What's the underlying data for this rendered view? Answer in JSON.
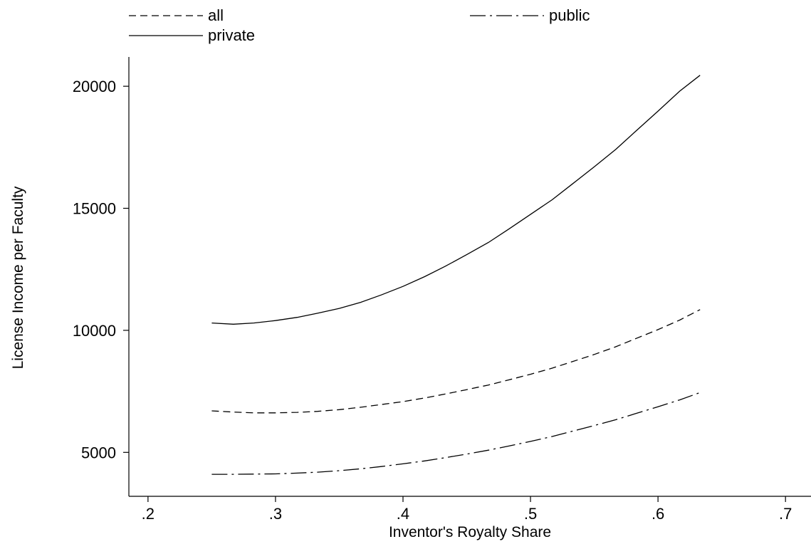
{
  "chart_data": {
    "type": "line",
    "title": "",
    "xlabel": "Inventor's Royalty Share",
    "ylabel": "License Income per Faculty",
    "xlim": [
      0.185,
      0.72
    ],
    "ylim": [
      3200,
      21200
    ],
    "xticks": [
      0.2,
      0.3,
      0.4,
      0.5,
      0.6,
      0.7
    ],
    "xtick_labels": [
      ".2",
      ".3",
      ".4",
      ".5",
      ".6",
      ".7"
    ],
    "yticks": [
      5000,
      10000,
      15000,
      20000
    ],
    "ytick_labels": [
      "5000",
      "10000",
      "15000",
      "20000"
    ],
    "grid": false,
    "legend_position": "top",
    "x": [
      0.25,
      0.267,
      0.283,
      0.3,
      0.317,
      0.333,
      0.35,
      0.367,
      0.383,
      0.4,
      0.417,
      0.433,
      0.45,
      0.467,
      0.483,
      0.5,
      0.517,
      0.533,
      0.55,
      0.567,
      0.583,
      0.6,
      0.617,
      0.633
    ],
    "series": [
      {
        "name": "all",
        "style": "dashed",
        "color": "#000000",
        "values": [
          6700,
          6650,
          6620,
          6620,
          6640,
          6680,
          6750,
          6850,
          6960,
          7080,
          7230,
          7390,
          7570,
          7760,
          7970,
          8200,
          8450,
          8720,
          9010,
          9330,
          9670,
          10030,
          10420,
          10850
        ]
      },
      {
        "name": "public",
        "style": "dash-dot",
        "color": "#000000",
        "values": [
          4100,
          4100,
          4110,
          4120,
          4150,
          4190,
          4250,
          4330,
          4420,
          4530,
          4650,
          4780,
          4930,
          5090,
          5260,
          5450,
          5650,
          5870,
          6100,
          6340,
          6600,
          6870,
          7150,
          7450
        ]
      },
      {
        "name": "private",
        "style": "solid",
        "color": "#000000",
        "values": [
          10300,
          10250,
          10300,
          10400,
          10530,
          10700,
          10900,
          11150,
          11450,
          11800,
          12200,
          12620,
          13100,
          13600,
          14150,
          14750,
          15350,
          16000,
          16700,
          17420,
          18180,
          18980,
          19800,
          20450
        ]
      }
    ]
  }
}
